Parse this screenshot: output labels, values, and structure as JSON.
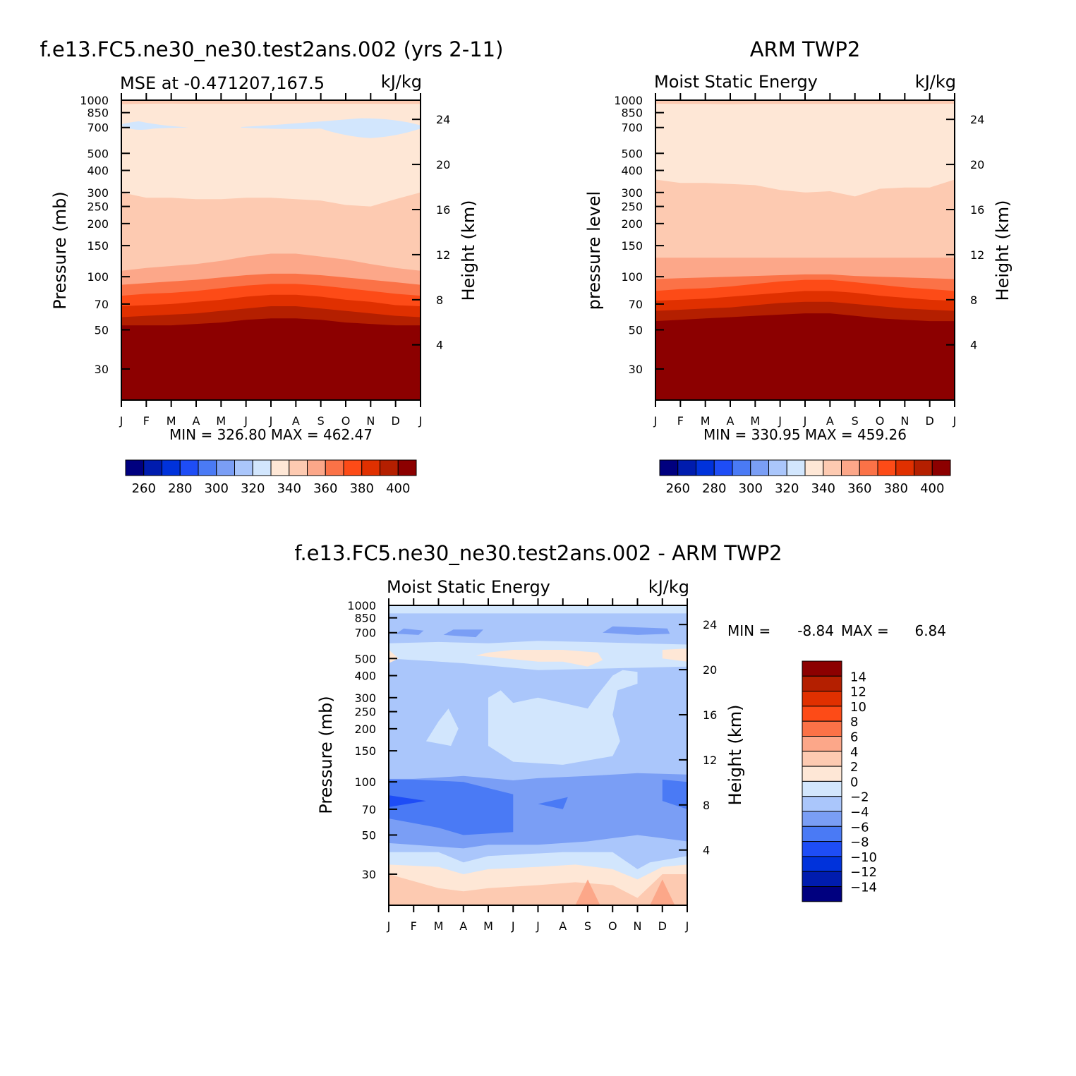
{
  "chart_data": [
    {
      "type": "heatmap",
      "title": "f.e13.FC5.ne30_ne30.test2ans.002 (yrs 2-11)",
      "left_string": "MSE at -0.471207,167.5",
      "right_string": "kJ/kg",
      "xlabel": "",
      "ylabel": "Pressure (mb)",
      "ylabel_right": "Height (km)",
      "x_ticks": [
        "J",
        "F",
        "M",
        "A",
        "M",
        "J",
        "J",
        "A",
        "S",
        "O",
        "N",
        "D",
        "J"
      ],
      "y_ticks": [
        "30",
        "50",
        "70",
        "100",
        "150",
        "200",
        "250",
        "300",
        "400",
        "500",
        "700",
        "850",
        "1000"
      ],
      "y_ticks_right": [
        "24",
        "20",
        "16",
        "12",
        "8",
        "4"
      ],
      "ylim": [
        1000,
        20
      ],
      "stats": "MIN =  326.80 MAX =  462.47",
      "levels": [
        250,
        260,
        270,
        280,
        290,
        300,
        310,
        320,
        330,
        340,
        350,
        360,
        370,
        380,
        390,
        400
      ],
      "colorbar_labels": [
        "260",
        "280",
        "300",
        "320",
        "340",
        "360",
        "380",
        "400"
      ],
      "boundaries": {
        "month": [
          0,
          1,
          2,
          3,
          4,
          5,
          6,
          7,
          8,
          9,
          10,
          11,
          12
        ],
        "p_1000_to_900": [
          950,
          955,
          956,
          954,
          954,
          955,
          955,
          955,
          955,
          954,
          954,
          952,
          952
        ],
        "p_700_and_more": [
          750,
          750,
          750,
          750,
          750,
          750,
          750,
          750,
          750,
          750,
          750,
          750,
          750
        ],
        "p_390": [
          300,
          280,
          280,
          275,
          275,
          280,
          280,
          275,
          270,
          255,
          250,
          275,
          300
        ],
        "p_380": [
          108,
          112,
          115,
          118,
          123,
          130,
          135,
          135,
          130,
          125,
          118,
          112,
          108
        ],
        "p_370": [
          90,
          92,
          94,
          96,
          99,
          102,
          104,
          104,
          102,
          99,
          96,
          93,
          90
        ],
        "p_360": [
          78,
          80,
          81,
          83,
          86,
          89,
          91,
          91,
          89,
          86,
          83,
          80,
          78
        ],
        "p_350": [
          68,
          69,
          70,
          72,
          74,
          77,
          79,
          79,
          77,
          74,
          72,
          69,
          68
        ],
        "p_340": [
          59,
          60,
          61,
          62,
          64,
          66,
          68,
          68,
          66,
          64,
          62,
          60,
          59
        ],
        "p_330": [
          53,
          53,
          53,
          54,
          55,
          57,
          58,
          58,
          57,
          55,
          54,
          53,
          53
        ]
      },
      "cells": [
        {
          "contour": "fill 330-340 warm",
          "value": 335
        }
      ]
    },
    {
      "type": "heatmap",
      "title": "ARM TWP2",
      "left_string": "Moist Static Energy",
      "right_string": "kJ/kg",
      "xlabel": "",
      "ylabel": "pressure level",
      "ylabel_right": "Height (km)",
      "x_ticks": [
        "J",
        "F",
        "M",
        "A",
        "M",
        "J",
        "J",
        "A",
        "S",
        "O",
        "N",
        "D",
        "J"
      ],
      "y_ticks": [
        "30",
        "50",
        "70",
        "100",
        "150",
        "200",
        "250",
        "300",
        "400",
        "500",
        "700",
        "850",
        "1000"
      ],
      "y_ticks_right": [
        "24",
        "20",
        "16",
        "12",
        "8",
        "4"
      ],
      "ylim": [
        1000,
        20
      ],
      "stats": "MIN =  330.95 MAX =  459.26",
      "levels": [
        250,
        260,
        270,
        280,
        290,
        300,
        310,
        320,
        330,
        340,
        350,
        360,
        370,
        380,
        390,
        400
      ],
      "colorbar_labels": [
        "260",
        "280",
        "300",
        "320",
        "340",
        "360",
        "380",
        "400"
      ]
    },
    {
      "type": "heatmap",
      "title": "f.e13.FC5.ne30_ne30.test2ans.002 - ARM TWP2",
      "left_string": "Moist Static Energy",
      "right_string": "kJ/kg",
      "xlabel": "",
      "ylabel": "Pressure (mb)",
      "ylabel_right": "Height (km)",
      "x_ticks": [
        "J",
        "F",
        "M",
        "A",
        "M",
        "J",
        "J",
        "A",
        "S",
        "O",
        "N",
        "D",
        "J"
      ],
      "y_ticks": [
        "30",
        "50",
        "70",
        "100",
        "150",
        "200",
        "250",
        "300",
        "400",
        "500",
        "700",
        "850",
        "1000"
      ],
      "y_ticks_right": [
        "24",
        "20",
        "16",
        "12",
        "8",
        "4"
      ],
      "ylim": [
        1000,
        20
      ],
      "stats_min_label": "MIN =",
      "stats_min": "-8.84",
      "stats_max_label": "MAX =",
      "stats_max": "6.84",
      "levels": [
        -14,
        -12,
        -10,
        -8,
        -6,
        -4,
        -2,
        0,
        2,
        4,
        6,
        8,
        10,
        12,
        14
      ],
      "colorbar_labels": [
        "14",
        "12",
        "10",
        "8",
        "6",
        "4",
        "2",
        "0",
        "-2",
        "-4",
        "-6",
        "-8",
        "-10",
        "-12",
        "-14"
      ]
    }
  ],
  "palette_cool_to_warm": [
    "#00007f",
    "#001cae",
    "#0032db",
    "#1e4df6",
    "#4a7af5",
    "#7a9ef5",
    "#aac6fb",
    "#d2e6fd",
    "#fee7d6",
    "#fdcab1",
    "#fca789",
    "#fb7247",
    "#fd4b17",
    "#e03000",
    "#b41f00",
    "#8c0000"
  ],
  "palette_diff": [
    "#00007f",
    "#001cae",
    "#0032db",
    "#1e4df6",
    "#4a7af5",
    "#7a9ef5",
    "#aac6fb",
    "#d2e6fd",
    "#fee7d6",
    "#fdcab1",
    "#fca789",
    "#fb7247",
    "#fd4b17",
    "#e03000",
    "#b41f00",
    "#8c0000"
  ]
}
